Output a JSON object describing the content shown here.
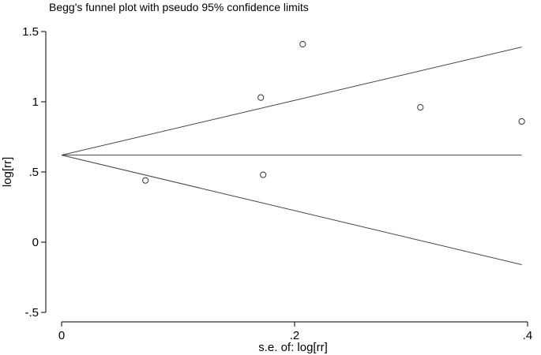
{
  "chart_data": {
    "type": "scatter",
    "title": "Begg's funnel plot with pseudo 95% confidence limits",
    "xlabel": "s.e. of: log[rr]",
    "ylabel": "log[rr]",
    "xlim": [
      0,
      0.4
    ],
    "ylim": [
      -0.5,
      1.5
    ],
    "x_ticks": [
      {
        "value": 0,
        "label": "0"
      },
      {
        "value": 0.2,
        "label": ".2"
      },
      {
        "value": 0.4,
        "label": ".4"
      }
    ],
    "y_ticks": [
      {
        "value": -0.5,
        "label": "-.5"
      },
      {
        "value": 0,
        "label": "0"
      },
      {
        "value": 0.5,
        "label": ".5"
      },
      {
        "value": 1,
        "label": "1"
      },
      {
        "value": 1.5,
        "label": "1.5"
      }
    ],
    "grid": false,
    "legend": "none",
    "points": [
      {
        "x": 0.072,
        "y": 0.44
      },
      {
        "x": 0.171,
        "y": 1.03
      },
      {
        "x": 0.173,
        "y": 0.48
      },
      {
        "x": 0.207,
        "y": 1.41
      },
      {
        "x": 0.308,
        "y": 0.96
      },
      {
        "x": 0.395,
        "y": 0.86
      }
    ],
    "pooled_estimate": 0.62,
    "funnel_lines": [
      {
        "x": [
          0,
          0.395
        ],
        "y": [
          0.62,
          1.39
        ]
      },
      {
        "x": [
          0,
          0.395
        ],
        "y": [
          0.62,
          0.62
        ]
      },
      {
        "x": [
          0,
          0.395
        ],
        "y": [
          0.62,
          -0.16
        ]
      }
    ],
    "colors": {
      "line": "#444444",
      "marker": "#333333",
      "axis": "#000000"
    }
  }
}
